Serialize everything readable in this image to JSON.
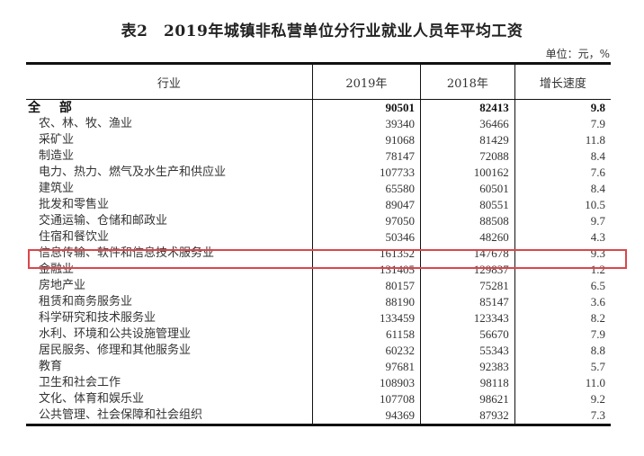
{
  "title": "表2　2019年城镇非私营单位分行业就业人员年平均工资",
  "unit": "单位：元，%",
  "highlight_color": "#d9474b",
  "columns": [
    "行业",
    "2019年",
    "2018年",
    "增长速度"
  ],
  "total": {
    "name": "全 部",
    "y2019": "90501",
    "y2018": "82413",
    "growth": "9.8"
  },
  "rows": [
    {
      "name": "农、林、牧、渔业",
      "y2019": "39340",
      "y2018": "36466",
      "growth": "7.9"
    },
    {
      "name": "采矿业",
      "y2019": "91068",
      "y2018": "81429",
      "growth": "11.8"
    },
    {
      "name": "制造业",
      "y2019": "78147",
      "y2018": "72088",
      "growth": "8.4"
    },
    {
      "name": "电力、热力、燃气及水生产和供应业",
      "y2019": "107733",
      "y2018": "100162",
      "growth": "7.6"
    },
    {
      "name": "建筑业",
      "y2019": "65580",
      "y2018": "60501",
      "growth": "8.4"
    },
    {
      "name": "批发和零售业",
      "y2019": "89047",
      "y2018": "80551",
      "growth": "10.5"
    },
    {
      "name": "交通运输、仓储和邮政业",
      "y2019": "97050",
      "y2018": "88508",
      "growth": "9.7"
    },
    {
      "name": "住宿和餐饮业",
      "y2019": "50346",
      "y2018": "48260",
      "growth": "4.3"
    },
    {
      "name": "信息传输、软件和信息技术服务业",
      "y2019": "161352",
      "y2018": "147678",
      "growth": "9.3",
      "highlighted": true
    },
    {
      "name": "金融业",
      "y2019": "131405",
      "y2018": "129837",
      "growth": "1.2"
    },
    {
      "name": "房地产业",
      "y2019": "80157",
      "y2018": "75281",
      "growth": "6.5"
    },
    {
      "name": "租赁和商务服务业",
      "y2019": "88190",
      "y2018": "85147",
      "growth": "3.6"
    },
    {
      "name": "科学研究和技术服务业",
      "y2019": "133459",
      "y2018": "123343",
      "growth": "8.2"
    },
    {
      "name": "水利、环境和公共设施管理业",
      "y2019": "61158",
      "y2018": "56670",
      "growth": "7.9"
    },
    {
      "name": "居民服务、修理和其他服务业",
      "y2019": "60232",
      "y2018": "55343",
      "growth": "8.8"
    },
    {
      "name": "教育",
      "y2019": "97681",
      "y2018": "92383",
      "growth": "5.7"
    },
    {
      "name": "卫生和社会工作",
      "y2019": "108903",
      "y2018": "98118",
      "growth": "11.0"
    },
    {
      "name": "文化、体育和娱乐业",
      "y2019": "107708",
      "y2018": "98621",
      "growth": "9.2"
    },
    {
      "name": "公共管理、社会保障和社会组织",
      "y2019": "94369",
      "y2018": "87932",
      "growth": "7.3"
    }
  ]
}
